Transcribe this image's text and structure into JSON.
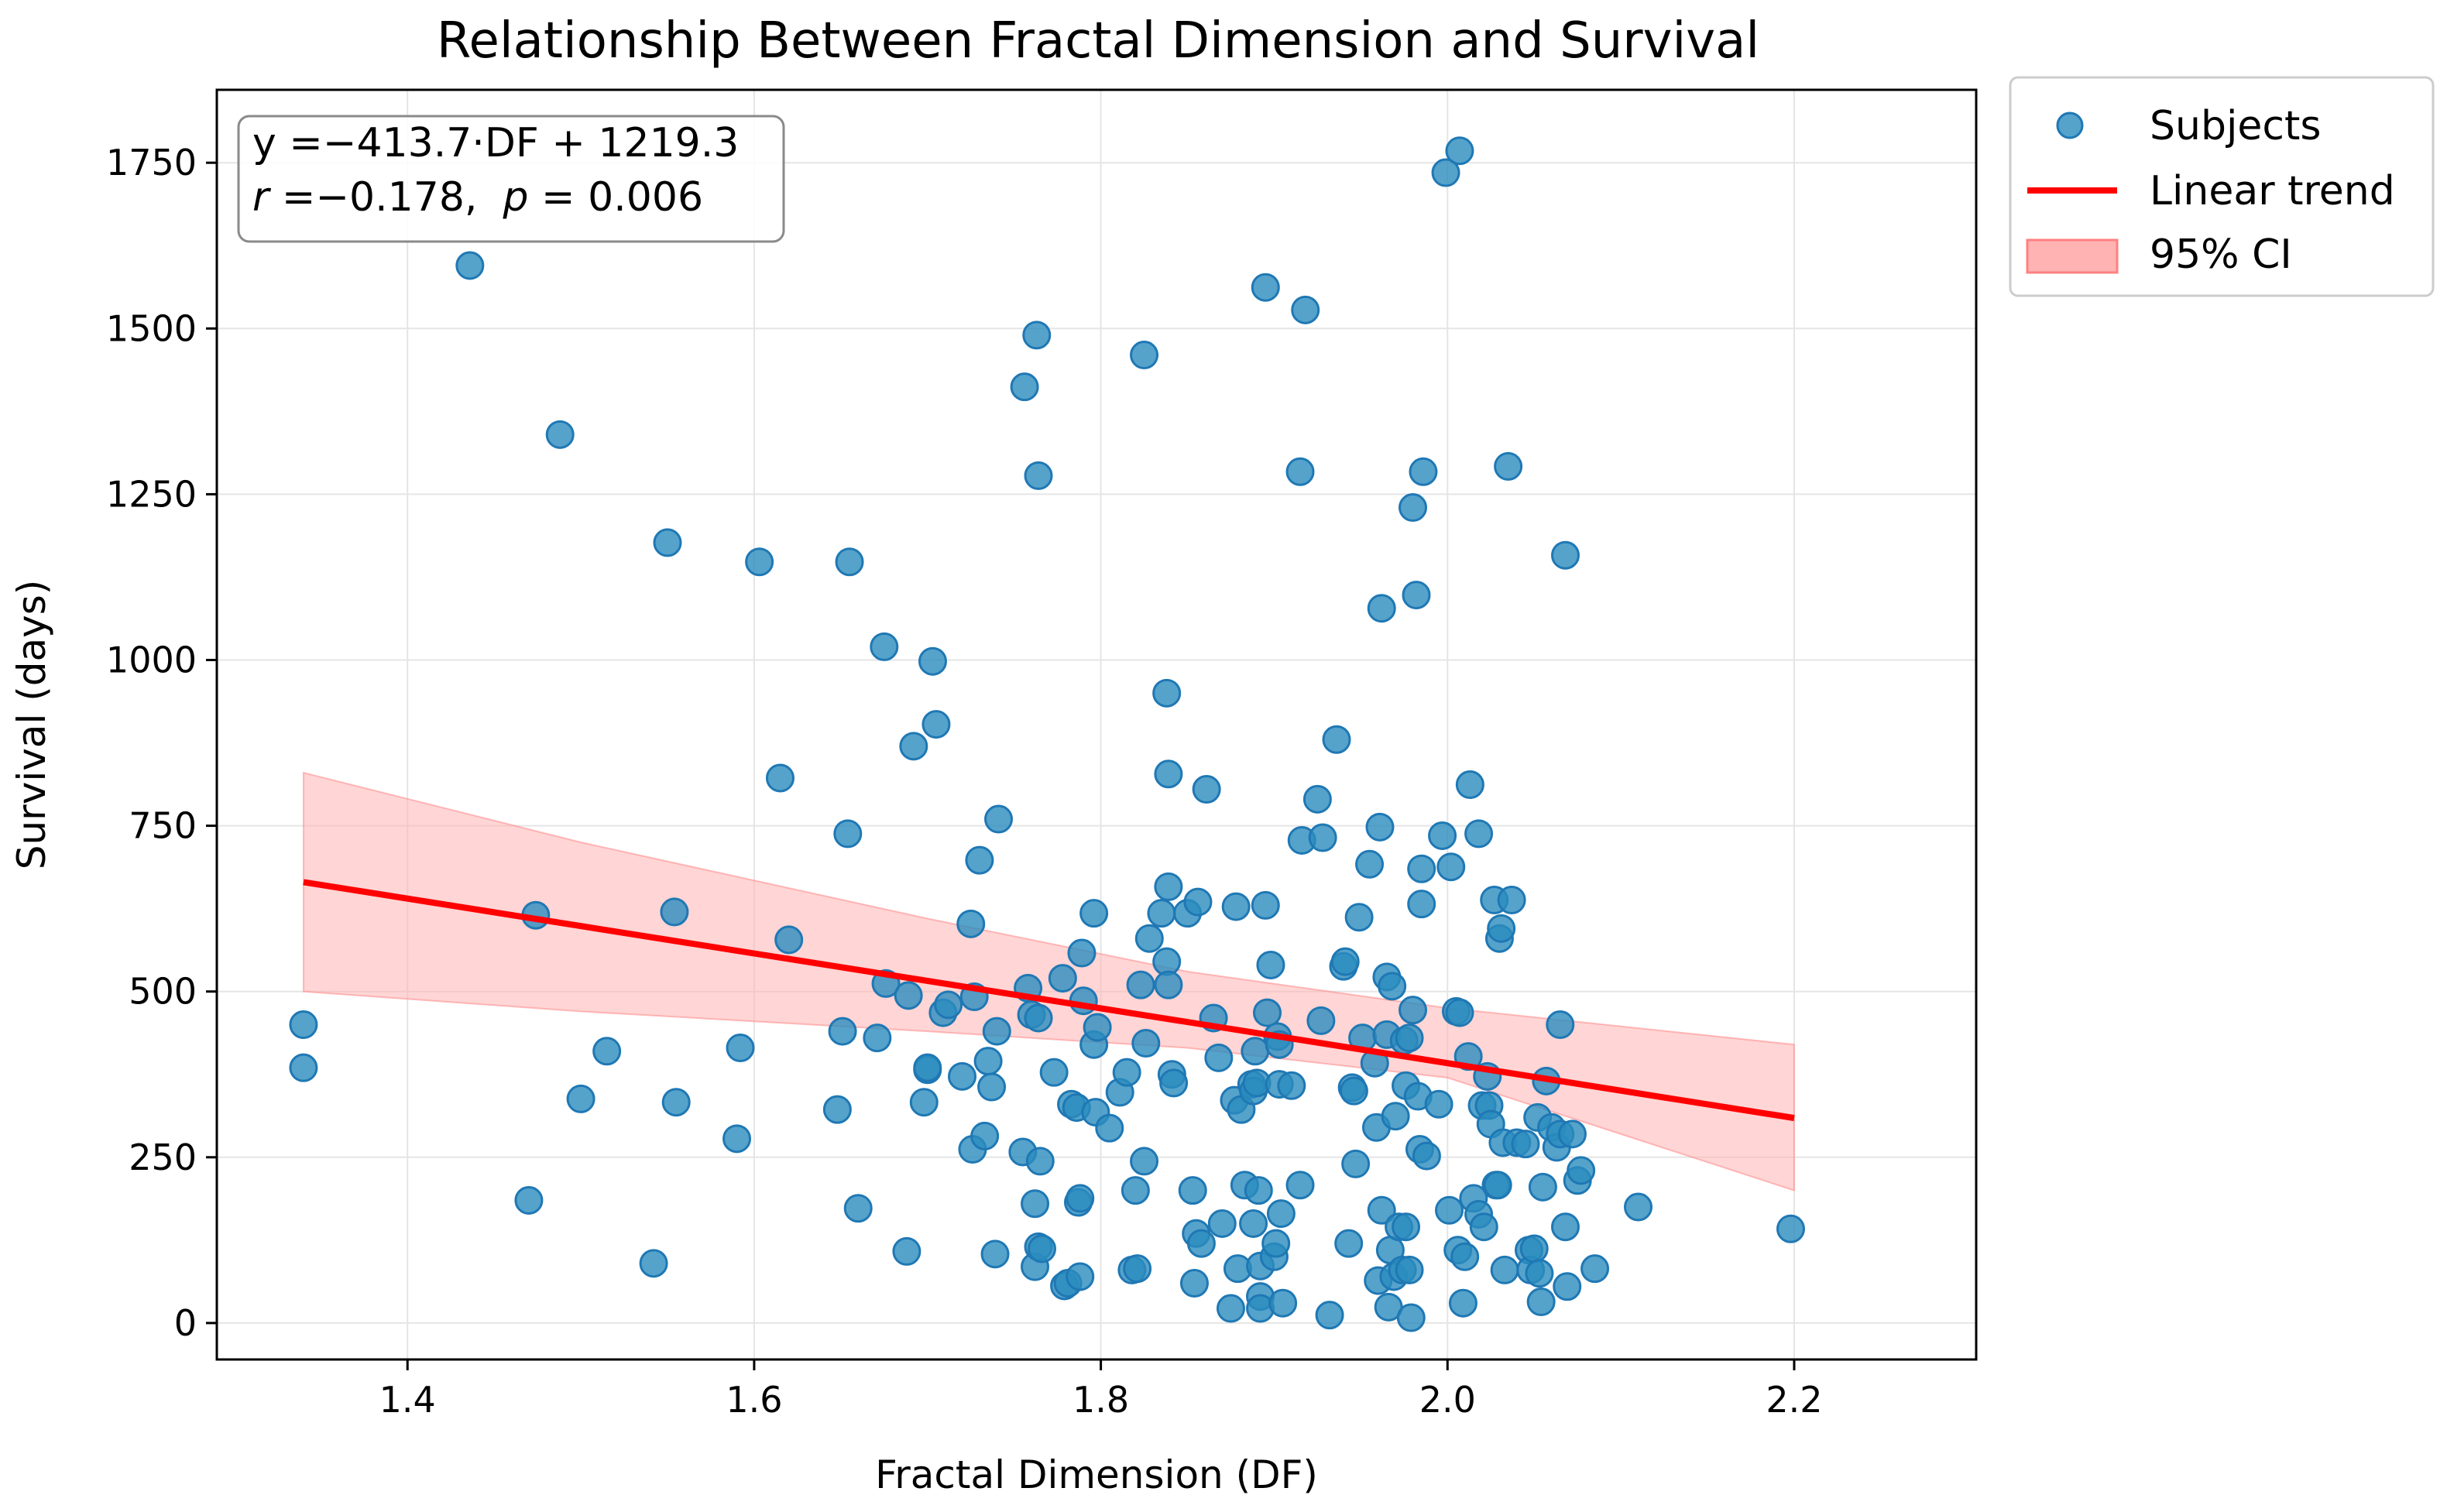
{
  "chart_data": {
    "type": "scatter",
    "title": "Relationship Between Fractal Dimension and Survival",
    "xlabel": "Fractal Dimension (DF)",
    "ylabel": "Survival (days)",
    "xlim": [
      1.29,
      2.305
    ],
    "ylim": [
      -55,
      1860
    ],
    "xticks": [
      1.4,
      1.6,
      1.8,
      2.0,
      2.2
    ],
    "xtick_labels": [
      "1.4",
      "1.6",
      "1.8",
      "2.0",
      "2.2"
    ],
    "yticks": [
      0,
      250,
      500,
      750,
      1000,
      1250,
      1500,
      1750
    ],
    "ytick_labels": [
      "0",
      "250",
      "500",
      "750",
      "1000",
      "1250",
      "1500",
      "1750"
    ],
    "grid": true,
    "legend": {
      "location": "outside-top-right",
      "entries": [
        {
          "label": "Subjects",
          "kind": "marker"
        },
        {
          "label": "Linear trend",
          "kind": "line"
        },
        {
          "label": "95% CI",
          "kind": "patch"
        }
      ]
    },
    "annotation": {
      "line1": "y =−413.7·DF + 1219.3",
      "line2_r": "r",
      "line2_mid": " =−0.178,  ",
      "line2_p": "p",
      "line2_end": " = 0.006"
    },
    "trend": {
      "slope": -413.7,
      "intercept": 1219.3,
      "x_range": [
        1.34,
        2.2
      ]
    },
    "ci_band": {
      "x": [
        1.34,
        1.5,
        1.7,
        1.85,
        2.0,
        2.2
      ],
      "upper": [
        830,
        725,
        610,
        530,
        475,
        420
      ],
      "lower": [
        500,
        470,
        440,
        415,
        370,
        200
      ]
    },
    "colors": {
      "points": "#2b8cbe",
      "points_edge": "#1f78b4",
      "trend": "#ff0000",
      "ci_fill": "#ffb3b3",
      "grid": "#e5e5e5"
    },
    "series": [
      {
        "name": "Subjects",
        "points": [
          [
            1.34,
            450
          ],
          [
            1.34,
            385
          ],
          [
            1.436,
            1595
          ],
          [
            1.47,
            185
          ],
          [
            1.474,
            615
          ],
          [
            1.488,
            1340
          ],
          [
            1.5,
            338
          ],
          [
            1.515,
            410
          ],
          [
            1.542,
            90
          ],
          [
            1.55,
            1177
          ],
          [
            1.554,
            620
          ],
          [
            1.555,
            333
          ],
          [
            1.59,
            278
          ],
          [
            1.592,
            415
          ],
          [
            1.603,
            1148
          ],
          [
            1.615,
            822
          ],
          [
            1.62,
            578
          ],
          [
            1.648,
            322
          ],
          [
            1.651,
            440
          ],
          [
            1.654,
            738
          ],
          [
            1.655,
            1148
          ],
          [
            1.66,
            173
          ],
          [
            1.671,
            430
          ],
          [
            1.675,
            1020
          ],
          [
            1.676,
            512
          ],
          [
            1.688,
            108
          ],
          [
            1.689,
            494
          ],
          [
            1.692,
            870
          ],
          [
            1.698,
            333
          ],
          [
            1.7,
            382
          ],
          [
            1.7,
            385
          ],
          [
            1.703,
            998
          ],
          [
            1.705,
            903
          ],
          [
            1.709,
            468
          ],
          [
            1.712,
            480
          ],
          [
            1.72,
            372
          ],
          [
            1.725,
            602
          ],
          [
            1.726,
            262
          ],
          [
            1.727,
            492
          ],
          [
            1.73,
            698
          ],
          [
            1.733,
            282
          ],
          [
            1.735,
            395
          ],
          [
            1.737,
            356
          ],
          [
            1.739,
            104
          ],
          [
            1.74,
            440
          ],
          [
            1.741,
            760
          ],
          [
            1.755,
            258
          ],
          [
            1.756,
            1412
          ],
          [
            1.758,
            505
          ],
          [
            1.76,
            465
          ],
          [
            1.762,
            85
          ],
          [
            1.762,
            180
          ],
          [
            1.764,
            115
          ],
          [
            1.764,
            460
          ],
          [
            1.765,
            244
          ],
          [
            1.766,
            112
          ],
          [
            1.763,
            1490
          ],
          [
            1.764,
            1278
          ],
          [
            1.773,
            378
          ],
          [
            1.778,
            520
          ],
          [
            1.779,
            56
          ],
          [
            1.781,
            60
          ],
          [
            1.783,
            330
          ],
          [
            1.786,
            325
          ],
          [
            1.787,
            182
          ],
          [
            1.788,
            188
          ],
          [
            1.788,
            70
          ],
          [
            1.789,
            558
          ],
          [
            1.79,
            486
          ],
          [
            1.796,
            618
          ],
          [
            1.796,
            420
          ],
          [
            1.797,
            318
          ],
          [
            1.798,
            446
          ],
          [
            1.805,
            294
          ],
          [
            1.811,
            348
          ],
          [
            1.815,
            378
          ],
          [
            1.818,
            80
          ],
          [
            1.82,
            200
          ],
          [
            1.821,
            82
          ],
          [
            1.823,
            510
          ],
          [
            1.825,
            1460
          ],
          [
            1.826,
            422
          ],
          [
            1.828,
            580
          ],
          [
            1.825,
            244
          ],
          [
            1.835,
            618
          ],
          [
            1.838,
            545
          ],
          [
            1.839,
            510
          ],
          [
            1.839,
            658
          ],
          [
            1.838,
            950
          ],
          [
            1.839,
            828
          ],
          [
            1.841,
            375
          ],
          [
            1.842,
            362
          ],
          [
            1.85,
            618
          ],
          [
            1.853,
            200
          ],
          [
            1.854,
            60
          ],
          [
            1.855,
            135
          ],
          [
            1.856,
            635
          ],
          [
            1.858,
            120
          ],
          [
            1.861,
            805
          ],
          [
            1.865,
            460
          ],
          [
            1.868,
            400
          ],
          [
            1.87,
            150
          ],
          [
            1.875,
            22
          ],
          [
            1.877,
            336
          ],
          [
            1.878,
            628
          ],
          [
            1.879,
            82
          ],
          [
            1.881,
            322
          ],
          [
            1.883,
            208
          ],
          [
            1.887,
            360
          ],
          [
            1.888,
            350
          ],
          [
            1.888,
            150
          ],
          [
            1.889,
            410
          ],
          [
            1.89,
            362
          ],
          [
            1.891,
            200
          ],
          [
            1.892,
            86
          ],
          [
            1.892,
            40
          ],
          [
            1.892,
            22
          ],
          [
            1.895,
            1562
          ],
          [
            1.895,
            630
          ],
          [
            1.896,
            468
          ],
          [
            1.898,
            540
          ],
          [
            1.9,
            100
          ],
          [
            1.901,
            120
          ],
          [
            1.902,
            432
          ],
          [
            1.903,
            360
          ],
          [
            1.903,
            420
          ],
          [
            1.904,
            165
          ],
          [
            1.905,
            30
          ],
          [
            1.91,
            358
          ],
          [
            1.915,
            208
          ],
          [
            1.916,
            728
          ],
          [
            1.915,
            1284
          ],
          [
            1.918,
            1528
          ],
          [
            1.925,
            790
          ],
          [
            1.927,
            456
          ],
          [
            1.928,
            732
          ],
          [
            1.932,
            12
          ],
          [
            1.936,
            880
          ],
          [
            1.94,
            538
          ],
          [
            1.941,
            545
          ],
          [
            1.943,
            120
          ],
          [
            1.945,
            355
          ],
          [
            1.946,
            350
          ],
          [
            1.947,
            240
          ],
          [
            1.949,
            612
          ],
          [
            1.951,
            430
          ],
          [
            1.955,
            692
          ],
          [
            1.958,
            392
          ],
          [
            1.959,
            295
          ],
          [
            1.96,
            64
          ],
          [
            1.961,
            748
          ],
          [
            1.962,
            1078
          ],
          [
            1.962,
            170
          ],
          [
            1.965,
            522
          ],
          [
            1.965,
            435
          ],
          [
            1.966,
            24
          ],
          [
            1.967,
            110
          ],
          [
            1.968,
            508
          ],
          [
            1.969,
            70
          ],
          [
            1.97,
            312
          ],
          [
            1.972,
            145
          ],
          [
            1.974,
            80
          ],
          [
            1.975,
            426
          ],
          [
            1.976,
            145
          ],
          [
            1.976,
            358
          ],
          [
            1.978,
            430
          ],
          [
            1.978,
            80
          ],
          [
            1.979,
            8
          ],
          [
            1.98,
            472
          ],
          [
            1.98,
            1230
          ],
          [
            1.982,
            1098
          ],
          [
            1.983,
            342
          ],
          [
            1.984,
            262
          ],
          [
            1.985,
            685
          ],
          [
            1.985,
            632
          ],
          [
            1.986,
            1284
          ],
          [
            1.988,
            252
          ],
          [
            1.995,
            330
          ],
          [
            1.997,
            735
          ],
          [
            1.999,
            1735
          ],
          [
            2.001,
            170
          ],
          [
            2.002,
            688
          ],
          [
            2.005,
            470
          ],
          [
            2.006,
            110
          ],
          [
            2.007,
            1768
          ],
          [
            2.007,
            468
          ],
          [
            2.009,
            30
          ],
          [
            2.01,
            100
          ],
          [
            2.012,
            402
          ],
          [
            2.013,
            812
          ],
          [
            2.015,
            188
          ],
          [
            2.018,
            738
          ],
          [
            2.018,
            164
          ],
          [
            2.02,
            328
          ],
          [
            2.021,
            145
          ],
          [
            2.023,
            372
          ],
          [
            2.024,
            328
          ],
          [
            2.025,
            300
          ],
          [
            2.027,
            638
          ],
          [
            2.028,
            208
          ],
          [
            2.029,
            208
          ],
          [
            2.03,
            580
          ],
          [
            2.031,
            595
          ],
          [
            2.032,
            272
          ],
          [
            2.033,
            80
          ],
          [
            2.035,
            1292
          ],
          [
            2.037,
            638
          ],
          [
            2.04,
            272
          ],
          [
            2.045,
            270
          ],
          [
            2.047,
            110
          ],
          [
            2.048,
            80
          ],
          [
            2.05,
            112
          ],
          [
            2.052,
            310
          ],
          [
            2.053,
            75
          ],
          [
            2.054,
            32
          ],
          [
            2.055,
            205
          ],
          [
            2.057,
            365
          ],
          [
            2.06,
            295
          ],
          [
            2.063,
            265
          ],
          [
            2.065,
            450
          ],
          [
            2.065,
            285
          ],
          [
            2.068,
            1158
          ],
          [
            2.068,
            145
          ],
          [
            2.069,
            55
          ],
          [
            2.072,
            285
          ],
          [
            2.075,
            215
          ],
          [
            2.077,
            230
          ],
          [
            2.085,
            82
          ],
          [
            2.11,
            175
          ],
          [
            2.198,
            142
          ]
        ]
      }
    ]
  }
}
